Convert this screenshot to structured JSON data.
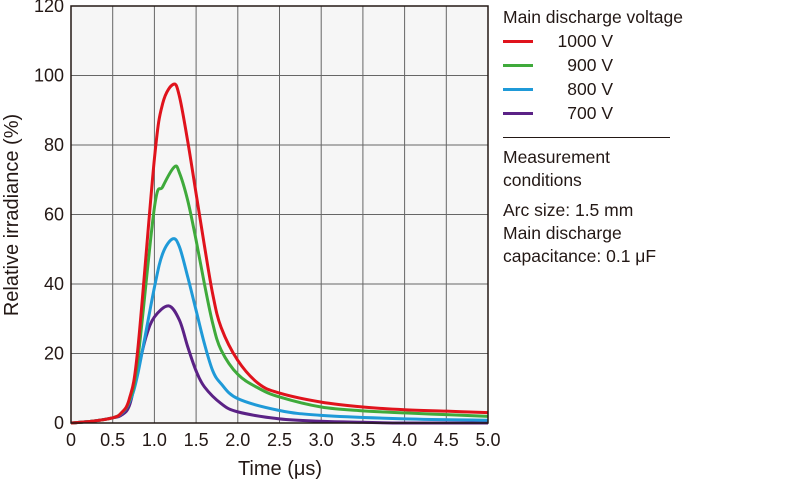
{
  "chart_data": {
    "type": "line",
    "title": "",
    "xlabel": "Time (μs)",
    "ylabel": "Relative irradiance (%)",
    "xlim": [
      0,
      5.0
    ],
    "ylim": [
      0,
      120
    ],
    "xticks": [
      "0",
      "0.5",
      "1.0",
      "1.5",
      "2.0",
      "2.5",
      "3.0",
      "3.5",
      "4.0",
      "4.5",
      "5.0"
    ],
    "yticks": [
      "0",
      "20",
      "40",
      "60",
      "80",
      "100",
      "120"
    ],
    "grid": true,
    "legend_title": "Main discharge voltage",
    "legend_placement": "right",
    "series": [
      {
        "name": "1000 V",
        "color": "#e0131c",
        "x": [
          0,
          0.25,
          0.5,
          0.6,
          0.7,
          0.8,
          1.0,
          1.1,
          1.23,
          1.3,
          1.4,
          1.5,
          1.6,
          1.7,
          1.8,
          2.0,
          2.25,
          2.5,
          3.0,
          3.5,
          4.0,
          4.5,
          5.0
        ],
        "y": [
          0,
          0.5,
          1.5,
          2.8,
          7,
          21,
          76,
          92,
          97.5,
          94,
          81,
          66,
          51,
          37,
          27.5,
          18,
          11.3,
          8.6,
          6,
          4.6,
          3.8,
          3.4,
          3.0
        ]
      },
      {
        "name": "900 V",
        "color": "#3faa3b",
        "x": [
          0,
          0.25,
          0.5,
          0.6,
          0.7,
          0.8,
          1.0,
          1.1,
          1.24,
          1.3,
          1.4,
          1.5,
          1.6,
          1.7,
          1.8,
          2.0,
          2.25,
          2.5,
          3.0,
          3.5,
          4.0,
          4.5,
          5.0
        ],
        "y": [
          0,
          0.5,
          1.5,
          2.8,
          6.5,
          18,
          62,
          68,
          73.7,
          72,
          64,
          52.6,
          40,
          28.6,
          21,
          14,
          10,
          7.5,
          4.6,
          3.5,
          2.9,
          2.4,
          1.9
        ]
      },
      {
        "name": "800 V",
        "color": "#1f9ad8",
        "x": [
          0,
          0.25,
          0.5,
          0.6,
          0.7,
          0.8,
          1.0,
          1.1,
          1.22,
          1.3,
          1.4,
          1.5,
          1.6,
          1.7,
          1.8,
          2.0,
          2.5,
          3.0,
          4.0,
          5.0
        ],
        "y": [
          0,
          0.5,
          1.5,
          2.6,
          6,
          14,
          39,
          48.8,
          53,
          50.7,
          42,
          32.4,
          22.8,
          15,
          11.3,
          7,
          3.6,
          2.2,
          1.2,
          0.8
        ]
      },
      {
        "name": "700 V",
        "color": "#5b2286",
        "x": [
          0,
          0.25,
          0.5,
          0.6,
          0.7,
          0.8,
          0.9,
          1.0,
          1.17,
          1.3,
          1.4,
          1.5,
          1.6,
          1.8,
          2.0,
          2.5,
          3.0,
          3.5,
          4.0,
          5.0
        ],
        "y": [
          0,
          0.5,
          1.5,
          2.2,
          5,
          15,
          24.8,
          30.5,
          33.7,
          29.6,
          21.9,
          15,
          10.4,
          5.6,
          3.2,
          1.2,
          0.5,
          0.2,
          0,
          0
        ]
      }
    ]
  },
  "legend": {
    "title": "Main discharge voltage",
    "items": [
      "1000 V",
      "900 V",
      "800 V",
      "700 V"
    ],
    "conditions_title": "Measurement conditions",
    "arc_size": "Arc size: 1.5 mm",
    "capacitance": "Main discharge capacitance: 0.1 μF"
  }
}
